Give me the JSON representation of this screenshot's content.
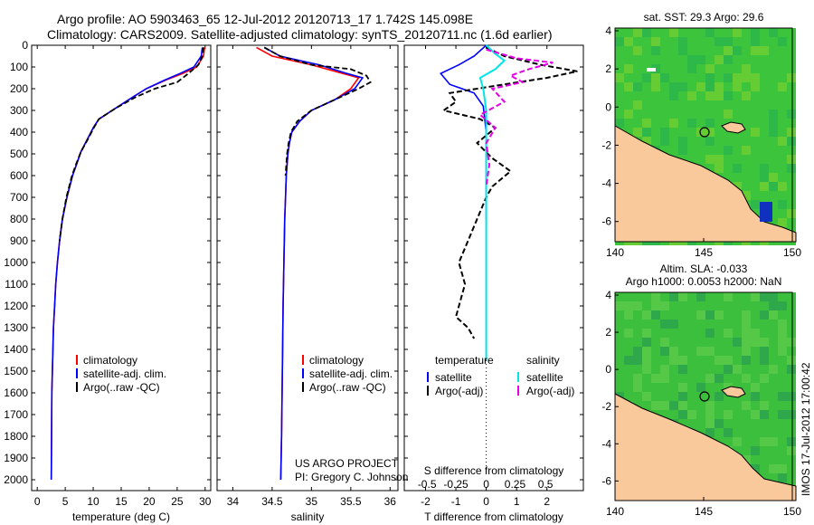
{
  "header": {
    "line1": "Argo profile: AO 5903463_65 12-Jul-2012 20120713_17 1.742S 145.098E",
    "line2": "Climatology: CARS2009. Satellite-adjusted climatology: synTS_20120711.nc (1.6d earlier)"
  },
  "colors": {
    "climatology": "#ff0000",
    "satellite": "#0000ff",
    "argo": "#000000",
    "sal_satellite": "#00e5e5",
    "sal_argo": "#e600e6",
    "land": "#f9c99b",
    "sea": "#3cc43c"
  },
  "chart_data": [
    {
      "type": "line",
      "id": "temperature",
      "xlabel": "temperature (deg C)",
      "ylabel": "",
      "xlim": [
        -1,
        31
      ],
      "ylim": [
        2050,
        0
      ],
      "y_reversed": true,
      "xticks": [
        0,
        5,
        10,
        15,
        20,
        25,
        30
      ],
      "yticks": [
        0,
        100,
        200,
        300,
        400,
        500,
        600,
        700,
        800,
        900,
        1000,
        1100,
        1200,
        1300,
        1400,
        1500,
        1600,
        1700,
        1800,
        1900,
        2000
      ],
      "legend": [
        "climatology",
        "satellite-adj. clim.",
        "Argo(..raw -QC)"
      ],
      "series": [
        {
          "name": "climatology",
          "x": [
            29.9,
            29.7,
            28.5,
            26,
            23,
            19.5,
            17,
            14,
            11,
            10,
            9,
            7.8,
            7,
            6.3,
            5.8,
            5.3,
            4.5,
            4,
            3.6,
            3.3,
            3.1,
            2.9,
            2.8,
            2.7,
            2.6,
            2.55,
            2.5
          ],
          "y": [
            10,
            50,
            100,
            130,
            160,
            200,
            240,
            290,
            340,
            380,
            430,
            490,
            550,
            600,
            650,
            700,
            800,
            900,
            1000,
            1100,
            1200,
            1300,
            1400,
            1500,
            1600,
            1800,
            2000
          ]
        },
        {
          "name": "satellite-adj. clim.",
          "x": [
            29.5,
            29.3,
            28,
            25.5,
            22.8,
            19.5,
            17,
            14,
            11,
            10,
            9,
            7.8,
            7,
            6.3,
            5.8,
            5.3,
            4.5,
            4,
            3.6,
            3.3,
            3.1,
            2.9,
            2.8,
            2.7,
            2.6,
            2.55,
            2.5
          ],
          "y": [
            10,
            50,
            100,
            130,
            160,
            200,
            240,
            290,
            340,
            380,
            430,
            490,
            550,
            600,
            650,
            700,
            800,
            900,
            1000,
            1100,
            1200,
            1300,
            1400,
            1500,
            1600,
            1800,
            2000
          ]
        },
        {
          "name": "Argo(..raw -QC)",
          "x": [
            29.7,
            29.5,
            28.8,
            27,
            25,
            21,
            17.5,
            14,
            11,
            10.1,
            9.1,
            7.8,
            6.9,
            6.2,
            5.7,
            5.2,
            4.5,
            4
          ],
          "y": [
            10,
            50,
            90,
            130,
            170,
            200,
            240,
            290,
            340,
            380,
            430,
            490,
            550,
            600,
            650,
            700,
            800,
            900
          ]
        }
      ]
    },
    {
      "type": "line",
      "id": "salinity",
      "xlabel": "salinity",
      "ylabel": "",
      "xlim": [
        33.8,
        36.1
      ],
      "ylim": [
        2050,
        0
      ],
      "y_reversed": true,
      "xticks": [
        34,
        34.5,
        35,
        35.5,
        36
      ],
      "legend": [
        "climatology",
        "satellite-adj. clim.",
        "Argo(..raw -QC)"
      ],
      "annotation": [
        "US ARGO PROJECT",
        "PI: Gregory C. Johnson"
      ],
      "series": [
        {
          "name": "climatology",
          "x": [
            34.3,
            34.5,
            35,
            35.4,
            35.6,
            35.5,
            35.3,
            35,
            34.85,
            34.75,
            34.72,
            34.7,
            34.68,
            34.67,
            34.66,
            34.65,
            34.64,
            34.63,
            34.62,
            34.61
          ],
          "y": [
            10,
            50,
            90,
            130,
            150,
            200,
            250,
            300,
            350,
            400,
            450,
            500,
            600,
            700,
            800,
            1000,
            1200,
            1500,
            1800,
            2000
          ]
        },
        {
          "name": "satellite-adj. clim.",
          "x": [
            34.4,
            34.6,
            35.1,
            35.45,
            35.65,
            35.55,
            35.3,
            35,
            34.85,
            34.75,
            34.72,
            34.7,
            34.68,
            34.67,
            34.66,
            34.65,
            34.64,
            34.63,
            34.62,
            34.61
          ],
          "y": [
            10,
            50,
            90,
            130,
            150,
            200,
            250,
            300,
            350,
            400,
            450,
            500,
            600,
            700,
            800,
            1000,
            1200,
            1500,
            1800,
            2000
          ]
        },
        {
          "name": "Argo(..raw -QC)",
          "x": [
            34.4,
            34.6,
            35,
            35.5,
            35.7,
            35.75,
            35.6,
            35.3,
            35,
            34.82,
            34.74,
            34.71,
            34.69,
            34.67
          ],
          "y": [
            10,
            50,
            90,
            110,
            140,
            170,
            200,
            250,
            300,
            350,
            400,
            450,
            500,
            600
          ]
        }
      ]
    },
    {
      "type": "line",
      "id": "difference",
      "xlabel": "T difference from climatology",
      "xlabel2": "S difference from climatology",
      "xlim": [
        -2.7,
        3.2
      ],
      "ylim": [
        2050,
        0
      ],
      "y_reversed": true,
      "xticks": [
        -2,
        -1,
        0,
        1,
        2
      ],
      "xticks_s": [
        "-0.5",
        "-0.25",
        "0",
        "0.25",
        "0.5"
      ],
      "legend": {
        "temperature": [
          "temperature",
          "satellite",
          "Argo(-adj)"
        ],
        "salinity": [
          "salinity",
          "satellite",
          "Argo(-adj)"
        ]
      },
      "series": [
        {
          "name": "T satellite",
          "x": [
            0,
            -0.4,
            -0.9,
            -1.5,
            -1.2,
            -0.4,
            -0.1,
            0,
            0,
            0
          ],
          "y": [
            0,
            50,
            90,
            130,
            180,
            220,
            280,
            400,
            600,
            800
          ]
        },
        {
          "name": "T Argo(-adj)",
          "x": [
            0,
            0.6,
            1.8,
            3,
            2,
            0.6,
            -1.2,
            -1,
            -1.4,
            -0.2,
            0.3,
            -0.3,
            0.2,
            0.8,
            0.2,
            0,
            -0.3,
            -0.6,
            -0.9,
            -0.7,
            -0.9,
            -1,
            -0.6,
            -0.4
          ],
          "y": [
            10,
            50,
            90,
            120,
            150,
            180,
            220,
            260,
            300,
            340,
            380,
            450,
            520,
            580,
            650,
            700,
            800,
            900,
            1000,
            1100,
            1200,
            1250,
            1300,
            1350
          ]
        },
        {
          "name": "S satellite",
          "x": [
            0,
            0.3,
            0.6,
            0.3,
            -0.2,
            -0.1,
            0,
            0,
            0,
            0,
            0
          ],
          "y": [
            0,
            40,
            70,
            110,
            150,
            200,
            300,
            500,
            800,
            1200,
            1450
          ]
        },
        {
          "name": "S Argo(-adj)",
          "x": [
            0,
            1,
            2.2,
            1.4,
            0.8,
            1.2,
            0.2,
            0.6,
            -0.2,
            0.3,
            0,
            0.1,
            0
          ],
          "y": [
            20,
            60,
            80,
            110,
            140,
            170,
            200,
            260,
            320,
            380,
            450,
            550,
            650
          ]
        }
      ]
    }
  ],
  "maps": {
    "sst": {
      "title": "sat. SST: 29.3 Argo: 29.6",
      "xticks": [
        "140",
        "145",
        "150"
      ],
      "yticks": [
        "4",
        "2",
        "0",
        "-2",
        "-4",
        "-6"
      ]
    },
    "sla": {
      "title1": "Altim. SLA: -0.033",
      "title2": "Argo h1000: 0.0053 h2000: NaN",
      "xticks": [
        "140",
        "145",
        "150"
      ],
      "yticks": [
        "4",
        "2",
        "0",
        "-2",
        "-4",
        "-6"
      ]
    },
    "stamp": "IMOS 17-Jul-2012 17:00:42"
  }
}
